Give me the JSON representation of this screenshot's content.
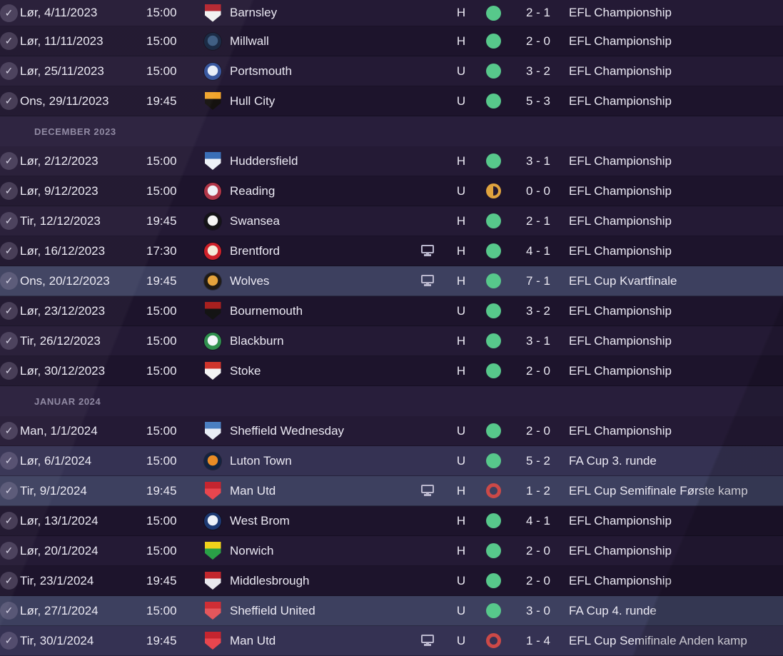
{
  "colors": {
    "win": "#57c88b",
    "draw": "#e0a33e",
    "loss": "#cc4947",
    "row_league_light": "#241a35",
    "row_league_dark": "#1d142c",
    "row_cup_light": "#3d405f",
    "row_cup_dark": "#353253",
    "header_text": "#8e87a1"
  },
  "groups": [
    {
      "label": null,
      "rows": [
        {
          "date": "Lør, 4/11/2023",
          "time": "15:00",
          "team": "Barnsley",
          "badge": {
            "shape": "shield",
            "colors": [
              "#f2f2f2",
              "#b5242e"
            ]
          },
          "tv": false,
          "venue": "H",
          "result": "win",
          "score": "2 - 1",
          "competition": "EFL Championship"
        },
        {
          "date": "Lør, 11/11/2023",
          "time": "15:00",
          "team": "Millwall",
          "badge": {
            "shape": "circle",
            "colors": [
              "#14243f",
              "#3a5a80"
            ]
          },
          "tv": false,
          "venue": "H",
          "result": "win",
          "score": "2 - 0",
          "competition": "EFL Championship"
        },
        {
          "date": "Lør, 25/11/2023",
          "time": "15:00",
          "team": "Portsmouth",
          "badge": {
            "shape": "circle",
            "colors": [
              "#33539c",
              "#e8eef8"
            ]
          },
          "tv": false,
          "venue": "U",
          "result": "win",
          "score": "3 - 2",
          "competition": "EFL Championship"
        },
        {
          "date": "Ons, 29/11/2023",
          "time": "19:45",
          "team": "Hull City",
          "badge": {
            "shape": "shield",
            "colors": [
              "#15120f",
              "#f0a32a"
            ]
          },
          "tv": false,
          "venue": "U",
          "result": "win",
          "score": "5 - 3",
          "competition": "EFL Championship"
        }
      ]
    },
    {
      "label": "DECEMBER 2023",
      "rows": [
        {
          "date": "Lør, 2/12/2023",
          "time": "15:00",
          "team": "Huddersfield",
          "badge": {
            "shape": "shield",
            "colors": [
              "#eef2f8",
              "#3a6fb7"
            ]
          },
          "tv": false,
          "venue": "H",
          "result": "win",
          "score": "3 - 1",
          "competition": "EFL Championship"
        },
        {
          "date": "Lør, 9/12/2023",
          "time": "15:00",
          "team": "Reading",
          "badge": {
            "shape": "circle",
            "colors": [
              "#b03648",
              "#eef1f6"
            ]
          },
          "tv": false,
          "venue": "U",
          "result": "draw",
          "score": "0 - 0",
          "competition": "EFL Championship"
        },
        {
          "date": "Tir, 12/12/2023",
          "time": "19:45",
          "team": "Swansea",
          "badge": {
            "shape": "circle",
            "colors": [
              "#141418",
              "#f5f5f5"
            ]
          },
          "tv": false,
          "venue": "H",
          "result": "win",
          "score": "2 - 1",
          "competition": "EFL Championship"
        },
        {
          "date": "Lør, 16/12/2023",
          "time": "17:30",
          "team": "Brentford",
          "badge": {
            "shape": "circle",
            "colors": [
              "#ce2029",
              "#f3ead8"
            ]
          },
          "tv": true,
          "venue": "H",
          "result": "win",
          "score": "4 - 1",
          "competition": "EFL Championship"
        },
        {
          "date": "Ons, 20/12/2023",
          "time": "19:45",
          "team": "Wolves",
          "badge": {
            "shape": "circle",
            "colors": [
              "#1f1a14",
              "#e5a33c"
            ]
          },
          "tv": true,
          "venue": "H",
          "result": "win",
          "score": "7 - 1",
          "competition": "EFL Cup Kvartfinale"
        },
        {
          "date": "Lør, 23/12/2023",
          "time": "15:00",
          "team": "Bournemouth",
          "badge": {
            "shape": "shield",
            "colors": [
              "#141414",
              "#a8201f"
            ]
          },
          "tv": false,
          "venue": "U",
          "result": "win",
          "score": "3 - 2",
          "competition": "EFL Championship"
        },
        {
          "date": "Tir, 26/12/2023",
          "time": "15:00",
          "team": "Blackburn",
          "badge": {
            "shape": "circle",
            "colors": [
              "#2f8f4e",
              "#f2f5f9"
            ]
          },
          "tv": false,
          "venue": "H",
          "result": "win",
          "score": "3 - 1",
          "competition": "EFL Championship"
        },
        {
          "date": "Lør, 30/12/2023",
          "time": "15:00",
          "team": "Stoke",
          "badge": {
            "shape": "shield",
            "colors": [
              "#f4f4f4",
              "#d0352c"
            ]
          },
          "tv": false,
          "venue": "H",
          "result": "win",
          "score": "2 - 0",
          "competition": "EFL Championship"
        }
      ]
    },
    {
      "label": "JANUAR 2024",
      "rows": [
        {
          "date": "Man, 1/1/2024",
          "time": "15:00",
          "team": "Sheffield Wednesday",
          "badge": {
            "shape": "shield",
            "colors": [
              "#e9eef6",
              "#4a7fc1"
            ]
          },
          "tv": false,
          "venue": "U",
          "result": "win",
          "score": "2 - 0",
          "competition": "EFL Championship"
        },
        {
          "date": "Lør, 6/1/2024",
          "time": "15:00",
          "team": "Luton Town",
          "badge": {
            "shape": "circle",
            "colors": [
              "#12233f",
              "#e98c25"
            ]
          },
          "tv": false,
          "venue": "U",
          "result": "win",
          "score": "5 - 2",
          "competition": "FA Cup 3. runde"
        },
        {
          "date": "Tir, 9/1/2024",
          "time": "19:45",
          "team": "Man Utd",
          "badge": {
            "shape": "shield",
            "colors": [
              "#e8464e",
              "#c5252f"
            ]
          },
          "tv": true,
          "venue": "H",
          "result": "loss",
          "score": "1 - 2",
          "competition": "EFL Cup Semifinale Første kamp"
        },
        {
          "date": "Lør, 13/1/2024",
          "time": "15:00",
          "team": "West Brom",
          "badge": {
            "shape": "circle",
            "colors": [
              "#1d3a73",
              "#eef2f8"
            ]
          },
          "tv": false,
          "venue": "H",
          "result": "win",
          "score": "4 - 1",
          "competition": "EFL Championship"
        },
        {
          "date": "Lør, 20/1/2024",
          "time": "15:00",
          "team": "Norwich",
          "badge": {
            "shape": "shield",
            "colors": [
              "#2aa147",
              "#f2d21b"
            ]
          },
          "tv": false,
          "venue": "H",
          "result": "win",
          "score": "2 - 0",
          "competition": "EFL Championship"
        },
        {
          "date": "Tir, 23/1/2024",
          "time": "19:45",
          "team": "Middlesbrough",
          "badge": {
            "shape": "shield",
            "colors": [
              "#e9e9ee",
              "#c2272d"
            ]
          },
          "tv": false,
          "venue": "U",
          "result": "win",
          "score": "2 - 0",
          "competition": "EFL Championship"
        },
        {
          "date": "Lør, 27/1/2024",
          "time": "15:00",
          "team": "Sheffield United",
          "badge": {
            "shape": "shield",
            "colors": [
              "#e4575c",
              "#cf2e35"
            ]
          },
          "tv": false,
          "venue": "U",
          "result": "win",
          "score": "3 - 0",
          "competition": "FA Cup 4. runde"
        },
        {
          "date": "Tir, 30/1/2024",
          "time": "19:45",
          "team": "Man Utd",
          "badge": {
            "shape": "shield",
            "colors": [
              "#e8464e",
              "#c5252f"
            ]
          },
          "tv": true,
          "venue": "U",
          "result": "loss",
          "score": "1 - 4",
          "competition": "EFL Cup Semifinale Anden kamp"
        }
      ]
    }
  ]
}
